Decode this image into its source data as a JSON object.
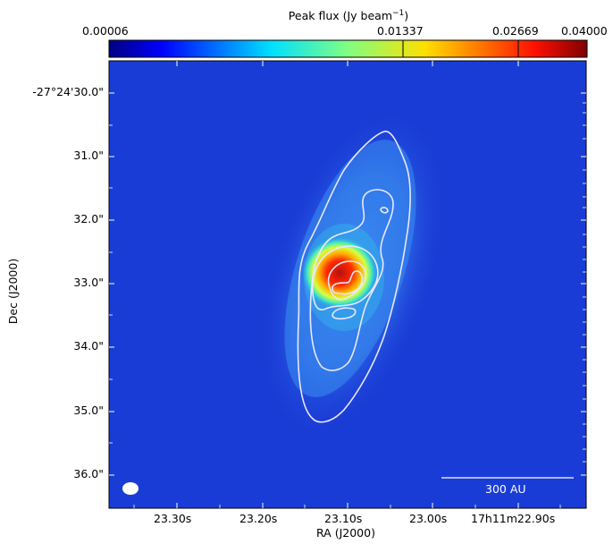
{
  "colorbar": {
    "label_main": "Peak flux (Jy beam",
    "label_exp": "−1",
    "label_close": ")",
    "ticks": [
      "0.00006",
      "0.01337",
      "0.02669",
      "0.04000"
    ],
    "min": 6e-05,
    "max": 0.04
  },
  "axes": {
    "xlabel": "RA (J2000)",
    "ylabel": "Dec (J2000)",
    "xticks": [
      "23.30s",
      "23.20s",
      "23.10s",
      "23.00s",
      "17h11m22.90s"
    ],
    "yticks": [
      "-27°24'30.0\"",
      "31.0\"",
      "32.0\"",
      "33.0\"",
      "34.0\"",
      "35.0\"",
      "36.0\""
    ]
  },
  "scalebar": {
    "label": "300 AU"
  },
  "colors": {
    "background": "#1a3cd6",
    "contour": "#e8e8ff"
  }
}
